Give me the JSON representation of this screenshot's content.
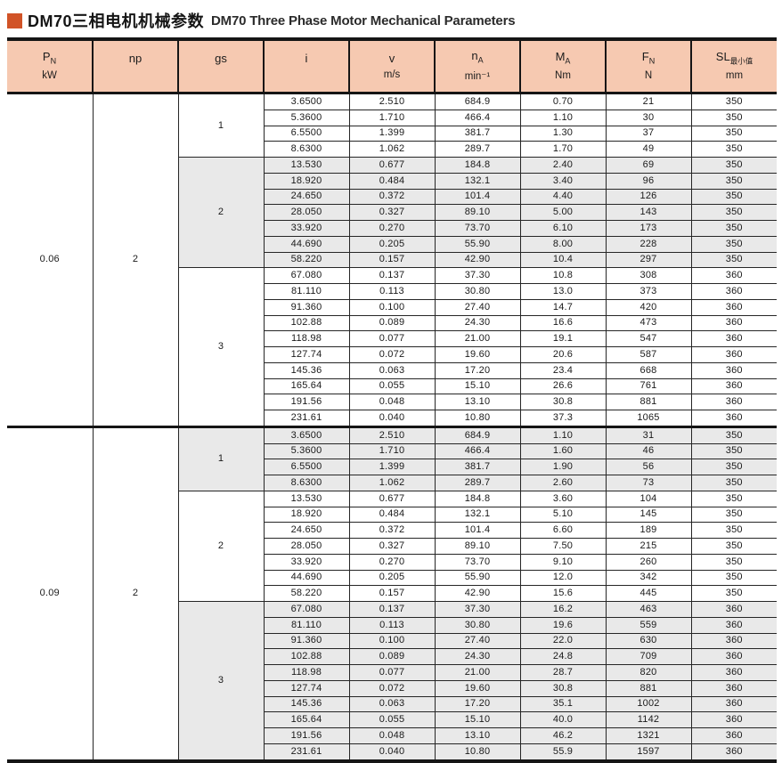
{
  "page": {
    "title_cn": "DM70三相电机机械参数",
    "title_en": "DM70 Three Phase Motor Mechanical Parameters",
    "accent_color": "#d15327",
    "header_bg": "#f6c9b1",
    "shaded_row_bg": "#e9e9e9"
  },
  "table": {
    "columns": [
      {
        "key": "pn",
        "main": "P",
        "sub": "N",
        "unit": "kW"
      },
      {
        "key": "np",
        "main": "np",
        "sub": "",
        "unit": ""
      },
      {
        "key": "gs",
        "main": "gs",
        "sub": "",
        "unit": ""
      },
      {
        "key": "i",
        "main": "i",
        "sub": "",
        "unit": ""
      },
      {
        "key": "v",
        "main": "v",
        "sub": "",
        "unit": "m/s"
      },
      {
        "key": "na",
        "main": "n",
        "sub": "A",
        "unit": "min⁻¹"
      },
      {
        "key": "ma",
        "main": "M",
        "sub": "A",
        "unit": "Nm"
      },
      {
        "key": "fn",
        "main": "F",
        "sub": "N",
        "unit": "N"
      },
      {
        "key": "sl",
        "main": "SL",
        "sub": "最小值",
        "unit": "mm"
      }
    ],
    "sections": [
      {
        "pn": "0.06",
        "np": "2",
        "groups": [
          {
            "gs": "1",
            "shaded": false,
            "rows": [
              [
                "3.6500",
                "2.510",
                "684.9",
                "0.70",
                "21",
                "350"
              ],
              [
                "5.3600",
                "1.710",
                "466.4",
                "1.10",
                "30",
                "350"
              ],
              [
                "6.5500",
                "1.399",
                "381.7",
                "1.30",
                "37",
                "350"
              ],
              [
                "8.6300",
                "1.062",
                "289.7",
                "1.70",
                "49",
                "350"
              ]
            ]
          },
          {
            "gs": "2",
            "shaded": true,
            "rows": [
              [
                "13.530",
                "0.677",
                "184.8",
                "2.40",
                "69",
                "350"
              ],
              [
                "18.920",
                "0.484",
                "132.1",
                "3.40",
                "96",
                "350"
              ],
              [
                "24.650",
                "0.372",
                "101.4",
                "4.40",
                "126",
                "350"
              ],
              [
                "28.050",
                "0.327",
                "89.10",
                "5.00",
                "143",
                "350"
              ],
              [
                "33.920",
                "0.270",
                "73.70",
                "6.10",
                "173",
                "350"
              ],
              [
                "44.690",
                "0.205",
                "55.90",
                "8.00",
                "228",
                "350"
              ],
              [
                "58.220",
                "0.157",
                "42.90",
                "10.4",
                "297",
                "350"
              ]
            ]
          },
          {
            "gs": "3",
            "shaded": false,
            "rows": [
              [
                "67.080",
                "0.137",
                "37.30",
                "10.8",
                "308",
                "360"
              ],
              [
                "81.110",
                "0.113",
                "30.80",
                "13.0",
                "373",
                "360"
              ],
              [
                "91.360",
                "0.100",
                "27.40",
                "14.7",
                "420",
                "360"
              ],
              [
                "102.88",
                "0.089",
                "24.30",
                "16.6",
                "473",
                "360"
              ],
              [
                "118.98",
                "0.077",
                "21.00",
                "19.1",
                "547",
                "360"
              ],
              [
                "127.74",
                "0.072",
                "19.60",
                "20.6",
                "587",
                "360"
              ],
              [
                "145.36",
                "0.063",
                "17.20",
                "23.4",
                "668",
                "360"
              ],
              [
                "165.64",
                "0.055",
                "15.10",
                "26.6",
                "761",
                "360"
              ],
              [
                "191.56",
                "0.048",
                "13.10",
                "30.8",
                "881",
                "360"
              ],
              [
                "231.61",
                "0.040",
                "10.80",
                "37.3",
                "1065",
                "360"
              ]
            ]
          }
        ]
      },
      {
        "pn": "0.09",
        "np": "2",
        "groups": [
          {
            "gs": "1",
            "shaded": true,
            "rows": [
              [
                "3.6500",
                "2.510",
                "684.9",
                "1.10",
                "31",
                "350"
              ],
              [
                "5.3600",
                "1.710",
                "466.4",
                "1.60",
                "46",
                "350"
              ],
              [
                "6.5500",
                "1.399",
                "381.7",
                "1.90",
                "56",
                "350"
              ],
              [
                "8.6300",
                "1.062",
                "289.7",
                "2.60",
                "73",
                "350"
              ]
            ]
          },
          {
            "gs": "2",
            "shaded": false,
            "rows": [
              [
                "13.530",
                "0.677",
                "184.8",
                "3.60",
                "104",
                "350"
              ],
              [
                "18.920",
                "0.484",
                "132.1",
                "5.10",
                "145",
                "350"
              ],
              [
                "24.650",
                "0.372",
                "101.4",
                "6.60",
                "189",
                "350"
              ],
              [
                "28.050",
                "0.327",
                "89.10",
                "7.50",
                "215",
                "350"
              ],
              [
                "33.920",
                "0.270",
                "73.70",
                "9.10",
                "260",
                "350"
              ],
              [
                "44.690",
                "0.205",
                "55.90",
                "12.0",
                "342",
                "350"
              ],
              [
                "58.220",
                "0.157",
                "42.90",
                "15.6",
                "445",
                "350"
              ]
            ]
          },
          {
            "gs": "3",
            "shaded": true,
            "rows": [
              [
                "67.080",
                "0.137",
                "37.30",
                "16.2",
                "463",
                "360"
              ],
              [
                "81.110",
                "0.113",
                "30.80",
                "19.6",
                "559",
                "360"
              ],
              [
                "91.360",
                "0.100",
                "27.40",
                "22.0",
                "630",
                "360"
              ],
              [
                "102.88",
                "0.089",
                "24.30",
                "24.8",
                "709",
                "360"
              ],
              [
                "118.98",
                "0.077",
                "21.00",
                "28.7",
                "820",
                "360"
              ],
              [
                "127.74",
                "0.072",
                "19.60",
                "30.8",
                "881",
                "360"
              ],
              [
                "145.36",
                "0.063",
                "17.20",
                "35.1",
                "1002",
                "360"
              ],
              [
                "165.64",
                "0.055",
                "15.10",
                "40.0",
                "1142",
                "360"
              ],
              [
                "191.56",
                "0.048",
                "13.10",
                "46.2",
                "1321",
                "360"
              ],
              [
                "231.61",
                "0.040",
                "10.80",
                "55.9",
                "1597",
                "360"
              ]
            ]
          }
        ]
      }
    ]
  }
}
